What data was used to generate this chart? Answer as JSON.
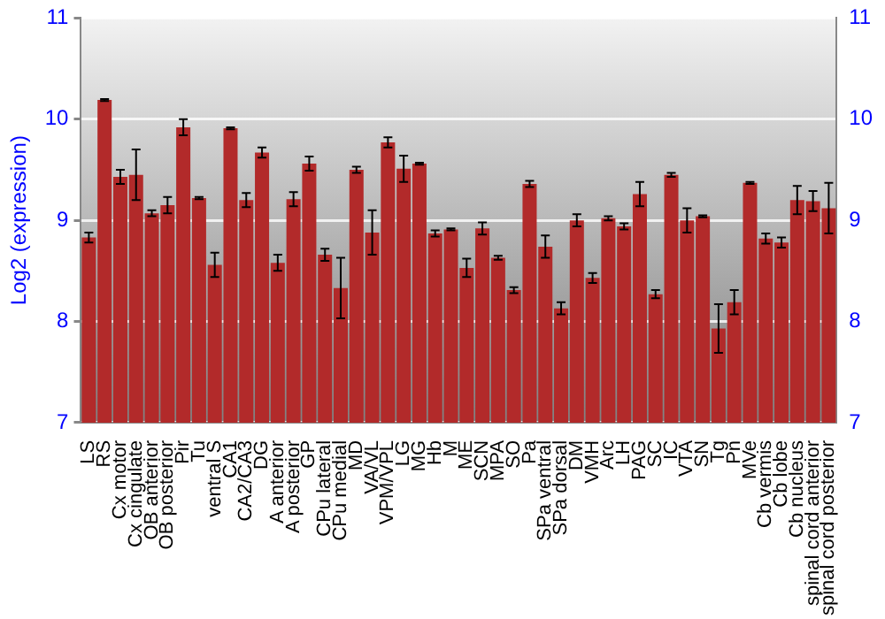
{
  "chart_data": {
    "type": "bar",
    "ylabel": "Log2 (expression)",
    "categories": [
      "LS",
      "RS",
      "Cx motor",
      "Cx cingulate",
      "OB anterior",
      "OB posterior",
      "Pir",
      "Tu",
      "ventral S",
      "CA1",
      "CA2/CA3",
      "DG",
      "A anterior",
      "A posterior",
      "GP",
      "CPu lateral",
      "CPu medial",
      "MD",
      "VA/VL",
      "VPM/VPL",
      "LG",
      "MG",
      "Hb",
      "M",
      "ME",
      "SCN",
      "MPA",
      "SO",
      "Pa",
      "SPa ventral",
      "SPa dorsal",
      "DM",
      "VMH",
      "Arc",
      "LH",
      "PAG",
      "SC",
      "IC",
      "VTA",
      "SN",
      "Tg",
      "Pn",
      "MVe",
      "Cb vermis",
      "Cb lobe",
      "Cb nucleus",
      "spinal cord anterior",
      "spinal cord posterior"
    ],
    "values": [
      8.83,
      10.19,
      9.43,
      9.45,
      9.07,
      9.15,
      9.92,
      9.22,
      8.56,
      9.91,
      9.2,
      9.67,
      8.58,
      9.21,
      9.56,
      8.66,
      8.33,
      9.5,
      8.88,
      9.77,
      9.51,
      9.56,
      8.87,
      8.91,
      8.53,
      8.92,
      8.63,
      8.31,
      9.36,
      8.74,
      8.13,
      9.0,
      8.43,
      9.02,
      8.94,
      9.26,
      8.27,
      9.45,
      9.0,
      9.04,
      7.93,
      8.19,
      9.37,
      8.82,
      8.78,
      9.2,
      9.19,
      9.12
    ],
    "errors": [
      0.05,
      0.01,
      0.07,
      0.25,
      0.03,
      0.08,
      0.08,
      0.01,
      0.12,
      0.01,
      0.07,
      0.05,
      0.08,
      0.07,
      0.07,
      0.06,
      0.3,
      0.03,
      0.22,
      0.05,
      0.13,
      0.01,
      0.03,
      0.01,
      0.09,
      0.06,
      0.02,
      0.03,
      0.03,
      0.11,
      0.06,
      0.06,
      0.05,
      0.02,
      0.03,
      0.12,
      0.04,
      0.02,
      0.12,
      0.01,
      0.24,
      0.12,
      0.01,
      0.05,
      0.05,
      0.14,
      0.1,
      0.25
    ],
    "color": "#b22a2a",
    "ylim": [
      7,
      11
    ],
    "yticks": [
      7,
      8,
      9,
      10,
      11
    ],
    "y2lim": [
      7,
      11
    ],
    "y2ticks": [
      7,
      8,
      9,
      10,
      11
    ],
    "grid": "y"
  }
}
